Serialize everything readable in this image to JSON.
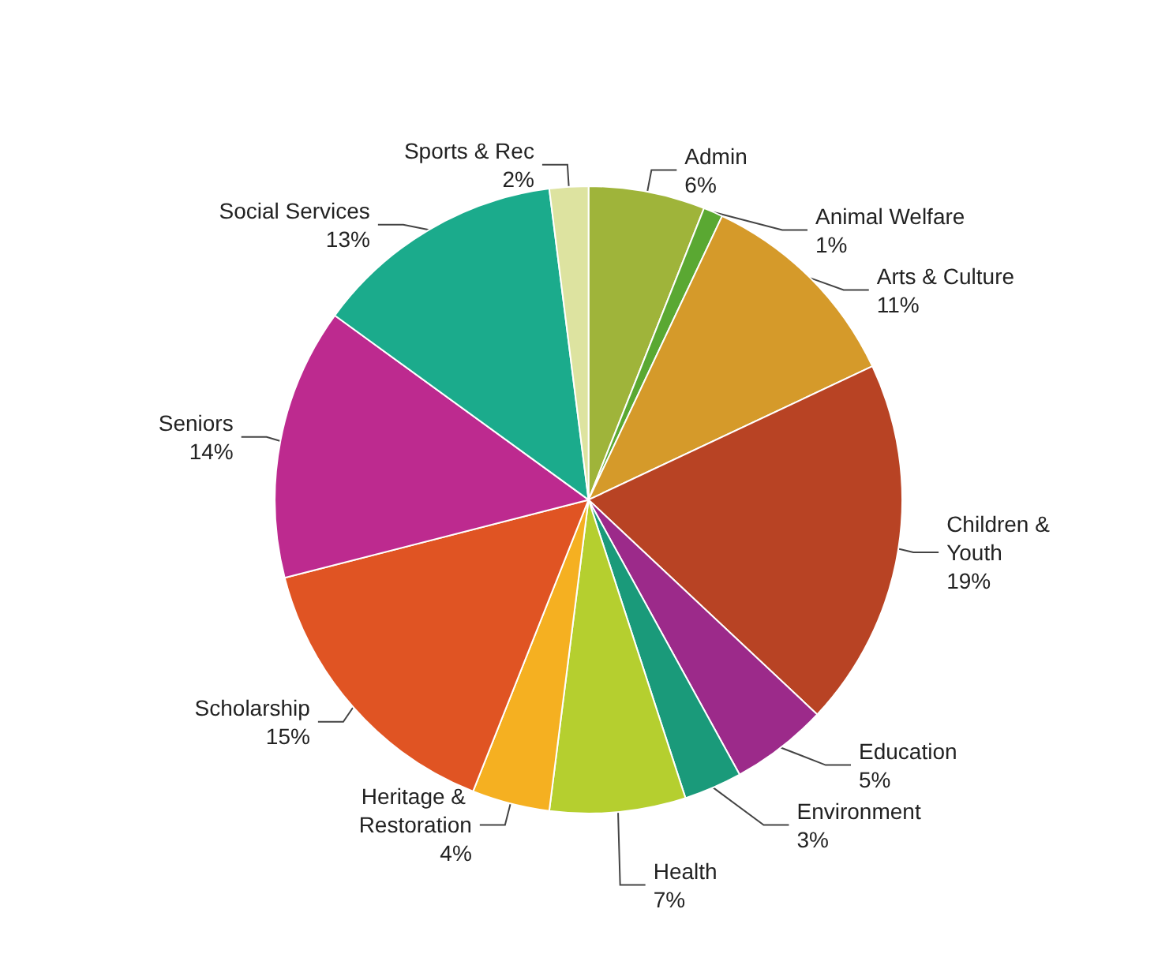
{
  "chart_data": {
    "type": "pie",
    "categories": [
      "Admin",
      "Animal Welfare",
      "Arts & Culture",
      "Children & Youth",
      "Education",
      "Environment",
      "Health",
      "Heritage & Restoration",
      "Scholarship",
      "Seniors",
      "Social Services",
      "Sports & Rec"
    ],
    "values": [
      6,
      1,
      11,
      19,
      5,
      3,
      7,
      4,
      15,
      14,
      13,
      2
    ],
    "value_labels": [
      "6%",
      "1%",
      "11%",
      "19%",
      "5%",
      "3%",
      "7%",
      "4%",
      "15%",
      "14%",
      "13%",
      "2%"
    ],
    "colors": [
      "#9fb43a",
      "#5aa832",
      "#d59a2a",
      "#b84324",
      "#9c2a8a",
      "#1a9a7a",
      "#b5cf2f",
      "#f5b021",
      "#e05423",
      "#bd2a8f",
      "#1bab8c",
      "#dde3a0"
    ],
    "legend": false
  }
}
